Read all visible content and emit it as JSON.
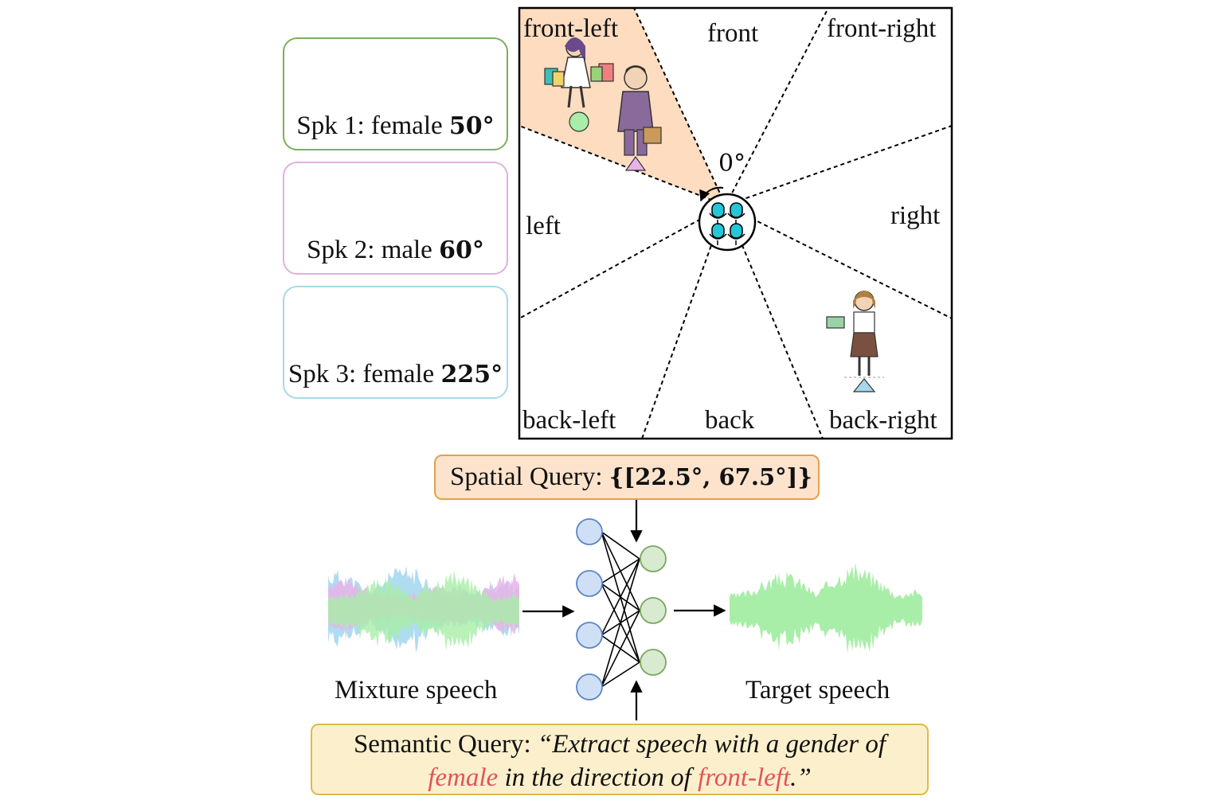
{
  "speakers": [
    {
      "id": "spk1",
      "text": "Spk 1: female",
      "angle": "50°",
      "color": "#a8eea8",
      "border": "#7daf5b"
    },
    {
      "id": "spk2",
      "text": "Spk 2: male",
      "angle": "60°",
      "color": "#e7b4e7",
      "border": "#e2b0e0"
    },
    {
      "id": "spk3",
      "text": "Spk 3: female",
      "angle": "225°",
      "color": "#a6d8ee",
      "border": "#a9d9e8"
    }
  ],
  "directions": {
    "front_left": "front-left",
    "front": "front",
    "front_right": "front-right",
    "left": "left",
    "right": "right",
    "back_left": "back-left",
    "back": "back",
    "back_right": "back-right"
  },
  "zero_angle": "0°",
  "spatial_query": {
    "label": "Spatial Query:",
    "value": "{[22.5°, 67.5°]}"
  },
  "mixture_label": "Mixture speech",
  "target_label": "Target speech",
  "semantic_query": {
    "label": "Semantic Query:",
    "quote_part1": "“Extract speech with a gender of",
    "gender": "female",
    "quote_part2": "in the direction of",
    "direction": "front-left",
    "quote_end": ".”"
  },
  "colors": {
    "sector_fill": "#fddcc0",
    "input_node": "#cfe0f6",
    "input_node_stroke": "#5b86c6",
    "output_node": "#d8ead0",
    "output_node_stroke": "#78a85e",
    "highlight_red": "#e2545a"
  }
}
